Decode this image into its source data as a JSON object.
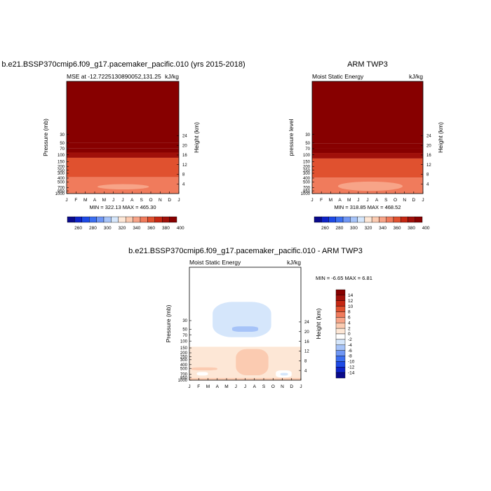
{
  "chart_data": [
    {
      "type": "heatmap",
      "title": "b.e21.BSSP370cmip6.f09_g17.pacemaker_pacific.010 (yrs 2015-2018)",
      "left_subtitle": "MSE at -12.7225130890052,131.25",
      "right_subtitle": "kJ/kg",
      "ylabel": "Pressure (mb)",
      "right_label": "Height (km)",
      "x_ticks": [
        "J",
        "F",
        "M",
        "A",
        "M",
        "J",
        "J",
        "A",
        "S",
        "O",
        "N",
        "D",
        "J"
      ],
      "y_ticks": [
        "30",
        "50",
        "70",
        "100",
        "150",
        "200",
        "250",
        "300",
        "400",
        "500",
        "700",
        "850",
        "1000"
      ],
      "height_ticks": [
        "24",
        "20",
        "16",
        "12",
        "8",
        "4"
      ],
      "min_max": "MIN = 322.13  MAX = 465.30",
      "colorbar_labels": [
        "260",
        "280",
        "300",
        "320",
        "340",
        "360",
        "380",
        "400"
      ],
      "bands": [
        {
          "p_top": 1.3,
          "p_bottom": 50,
          "value": 405
        },
        {
          "p_top": 50,
          "p_bottom": 68,
          "value": 392
        },
        {
          "p_top": 68,
          "p_bottom": 88,
          "value": 382
        },
        {
          "p_top": 88,
          "p_bottom": 120,
          "value": 370
        },
        {
          "p_top": 120,
          "p_bottom": 380,
          "value": 352
        },
        {
          "p_top": 380,
          "p_bottom": 1000,
          "value": 342
        }
      ],
      "blob": {
        "month_start": 3.3,
        "month_end": 8.8,
        "p_top": 570,
        "p_bottom": 780,
        "value": 335
      }
    },
    {
      "type": "heatmap",
      "title": "ARM TWP3",
      "left_subtitle": "Moist Static Energy",
      "right_subtitle": "kJ/kg",
      "ylabel": "pressure level",
      "right_label": "Height (km)",
      "x_ticks": [
        "J",
        "F",
        "M",
        "A",
        "M",
        "J",
        "J",
        "A",
        "S",
        "O",
        "N",
        "D",
        "J"
      ],
      "y_ticks": [
        "30",
        "50",
        "70",
        "100",
        "150",
        "200",
        "250",
        "300",
        "400",
        "500",
        "700",
        "850",
        "1000"
      ],
      "height_ticks": [
        "24",
        "20",
        "16",
        "12",
        "8",
        "4"
      ],
      "min_max": "MIN = 318.85  MAX = 468.52",
      "colorbar_labels": [
        "260",
        "280",
        "300",
        "320",
        "340",
        "360",
        "380",
        "400"
      ],
      "bands": [
        {
          "p_top": 1.3,
          "p_bottom": 52,
          "value": 405
        },
        {
          "p_top": 52,
          "p_bottom": 70,
          "value": 392
        },
        {
          "p_top": 70,
          "p_bottom": 90,
          "value": 382
        },
        {
          "p_top": 90,
          "p_bottom": 125,
          "value": 370
        },
        {
          "p_top": 125,
          "p_bottom": 390,
          "value": 352
        },
        {
          "p_top": 390,
          "p_bottom": 1000,
          "value": 342
        }
      ],
      "blob": {
        "month_start": 2.8,
        "month_end": 9.8,
        "p_top": 490,
        "p_bottom": 850,
        "value": 335
      }
    },
    {
      "type": "heatmap",
      "title": "b.e21.BSSP370cmip6.f09_g17.pacemaker_pacific.010 - ARM TWP3",
      "left_subtitle": "Moist Static Energy",
      "right_subtitle": "kJ/kg",
      "ylabel": "Pressure (mb)",
      "right_label": "Height (km)",
      "x_ticks": [
        "J",
        "F",
        "M",
        "A",
        "M",
        "J",
        "J",
        "A",
        "S",
        "O",
        "N",
        "D",
        "J"
      ],
      "y_ticks": [
        "30",
        "50",
        "70",
        "100",
        "150",
        "200",
        "250",
        "300",
        "400",
        "500",
        "700",
        "850",
        "1000"
      ],
      "height_ticks": [
        "24",
        "20",
        "16",
        "12",
        "8",
        "4"
      ],
      "min_max": "MIN =  -6.65  MAX =   6.81",
      "colorbar_labels": [
        "14",
        "12",
        "10",
        "8",
        "6",
        "4",
        "2",
        "0",
        "-2",
        "-4",
        "-6",
        "-8",
        "-10",
        "-12",
        "-14"
      ],
      "regions": [
        {
          "month_start": 0,
          "month_end": 12,
          "p_top": 1.3,
          "p_bottom": 140,
          "value": -1
        },
        {
          "month_start": 2.5,
          "month_end": 8.8,
          "p_top": 10,
          "p_bottom": 80,
          "value": -3
        },
        {
          "month_start": 4.6,
          "month_end": 7.4,
          "p_top": 42,
          "p_bottom": 58,
          "value": -5
        },
        {
          "month_start": 0,
          "month_end": 12,
          "p_top": 140,
          "p_bottom": 1000,
          "value": 1
        },
        {
          "month_start": 5.0,
          "month_end": 8.5,
          "p_top": 160,
          "p_bottom": 750,
          "value": 3
        },
        {
          "month_start": 0.2,
          "month_end": 3.0,
          "p_top": 470,
          "p_bottom": 560,
          "value": 3
        },
        {
          "month_start": 0.8,
          "month_end": 2.0,
          "p_top": 620,
          "p_bottom": 760,
          "value": -1
        },
        {
          "month_start": 9.3,
          "month_end": 11.0,
          "p_top": 560,
          "p_bottom": 850,
          "value": -1
        },
        {
          "month_start": 9.8,
          "month_end": 10.6,
          "p_top": 650,
          "p_bottom": 760,
          "value": -3
        },
        {
          "month_start": 0,
          "month_end": 12,
          "p_top": 880,
          "p_bottom": 1000,
          "value": 3
        }
      ]
    }
  ],
  "colors": {
    "mse_scale": [
      "#0a0a8c",
      "#0e23c8",
      "#1e4ae6",
      "#3c6ff0",
      "#6f96f4",
      "#a6c3f8",
      "#d5e6fb",
      "#fde7d6",
      "#fbcbb1",
      "#f7a488",
      "#f07b5c",
      "#e0512f",
      "#c52713",
      "#a0100a",
      "#870000"
    ],
    "diff_scale": [
      "#870000",
      "#a0100a",
      "#c52713",
      "#e0512f",
      "#f07b5c",
      "#f7a488",
      "#fbcbb1",
      "#fde7d6",
      "#ffffff",
      "#d5e6fb",
      "#a6c3f8",
      "#6f96f4",
      "#3c6ff0",
      "#1e4ae6",
      "#0e23c8",
      "#0a0a8c"
    ]
  }
}
